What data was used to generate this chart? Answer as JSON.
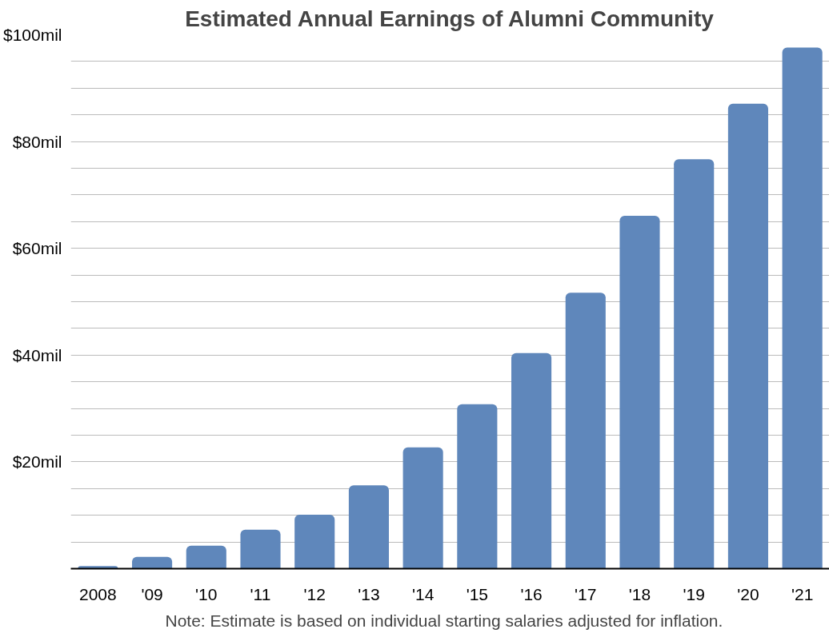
{
  "chart_data": {
    "type": "bar",
    "title": "Estimated Annual Earnings of Alumni Community",
    "categories": [
      "2008",
      "'09",
      "'10",
      "'11",
      "'12",
      "'13",
      "'14",
      "'15",
      "'16",
      "'17",
      "'18",
      "'19",
      "'20",
      "'21"
    ],
    "values": [
      0.5,
      2.2,
      4.3,
      7.3,
      10.1,
      15.6,
      22.7,
      30.8,
      40.4,
      51.7,
      66.1,
      76.7,
      87.1,
      97.6
    ],
    "color": "#5f87bb",
    "ylim": [
      0,
      100
    ],
    "yticks": [
      {
        "value": 0,
        "label": null
      },
      {
        "value": 5,
        "label": null
      },
      {
        "value": 10,
        "label": null
      },
      {
        "value": 15,
        "label": null
      },
      {
        "value": 20,
        "label": "$20mil"
      },
      {
        "value": 25,
        "label": null
      },
      {
        "value": 30,
        "label": null
      },
      {
        "value": 35,
        "label": null
      },
      {
        "value": 40,
        "label": "$40mil"
      },
      {
        "value": 45,
        "label": null
      },
      {
        "value": 50,
        "label": null
      },
      {
        "value": 55,
        "label": null
      },
      {
        "value": 60,
        "label": "$60mil"
      },
      {
        "value": 65,
        "label": null
      },
      {
        "value": 70,
        "label": null
      },
      {
        "value": 75,
        "label": null
      },
      {
        "value": 80,
        "label": "$80mil"
      },
      {
        "value": 85,
        "label": null
      },
      {
        "value": 90,
        "label": null
      },
      {
        "value": 95,
        "label": null
      },
      {
        "value": 100,
        "label": "$100mil"
      }
    ],
    "grid": "y",
    "annotations": [
      "Note: Estimate is based on individual starting salaries adjusted for inflation."
    ]
  }
}
